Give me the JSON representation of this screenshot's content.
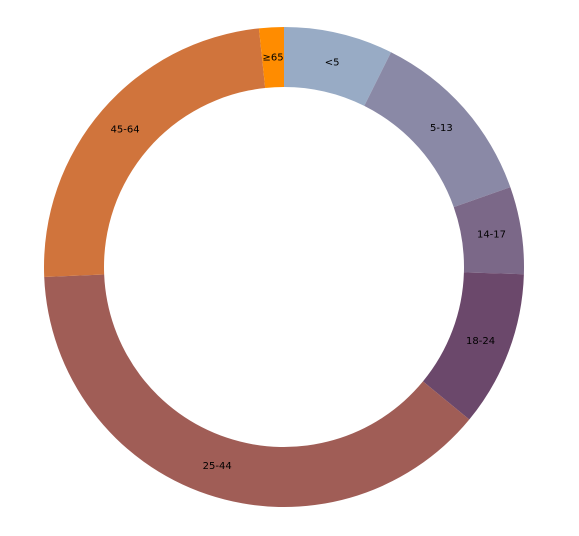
{
  "chart_data": {
    "type": "pie",
    "variant": "donut",
    "categories": [
      "<5",
      "5-13",
      "14-17",
      "18-24",
      "25-44",
      "45-64",
      "≥65"
    ],
    "values": [
      2704659,
      4499890,
      2159981,
      3853788,
      14106543,
      8819342,
      612463
    ],
    "colors": [
      "#98abc5",
      "#8a89a6",
      "#7b6888",
      "#6b486b",
      "#a05d56",
      "#d0743c",
      "#ff8c00"
    ],
    "title": "",
    "legend": "none"
  }
}
